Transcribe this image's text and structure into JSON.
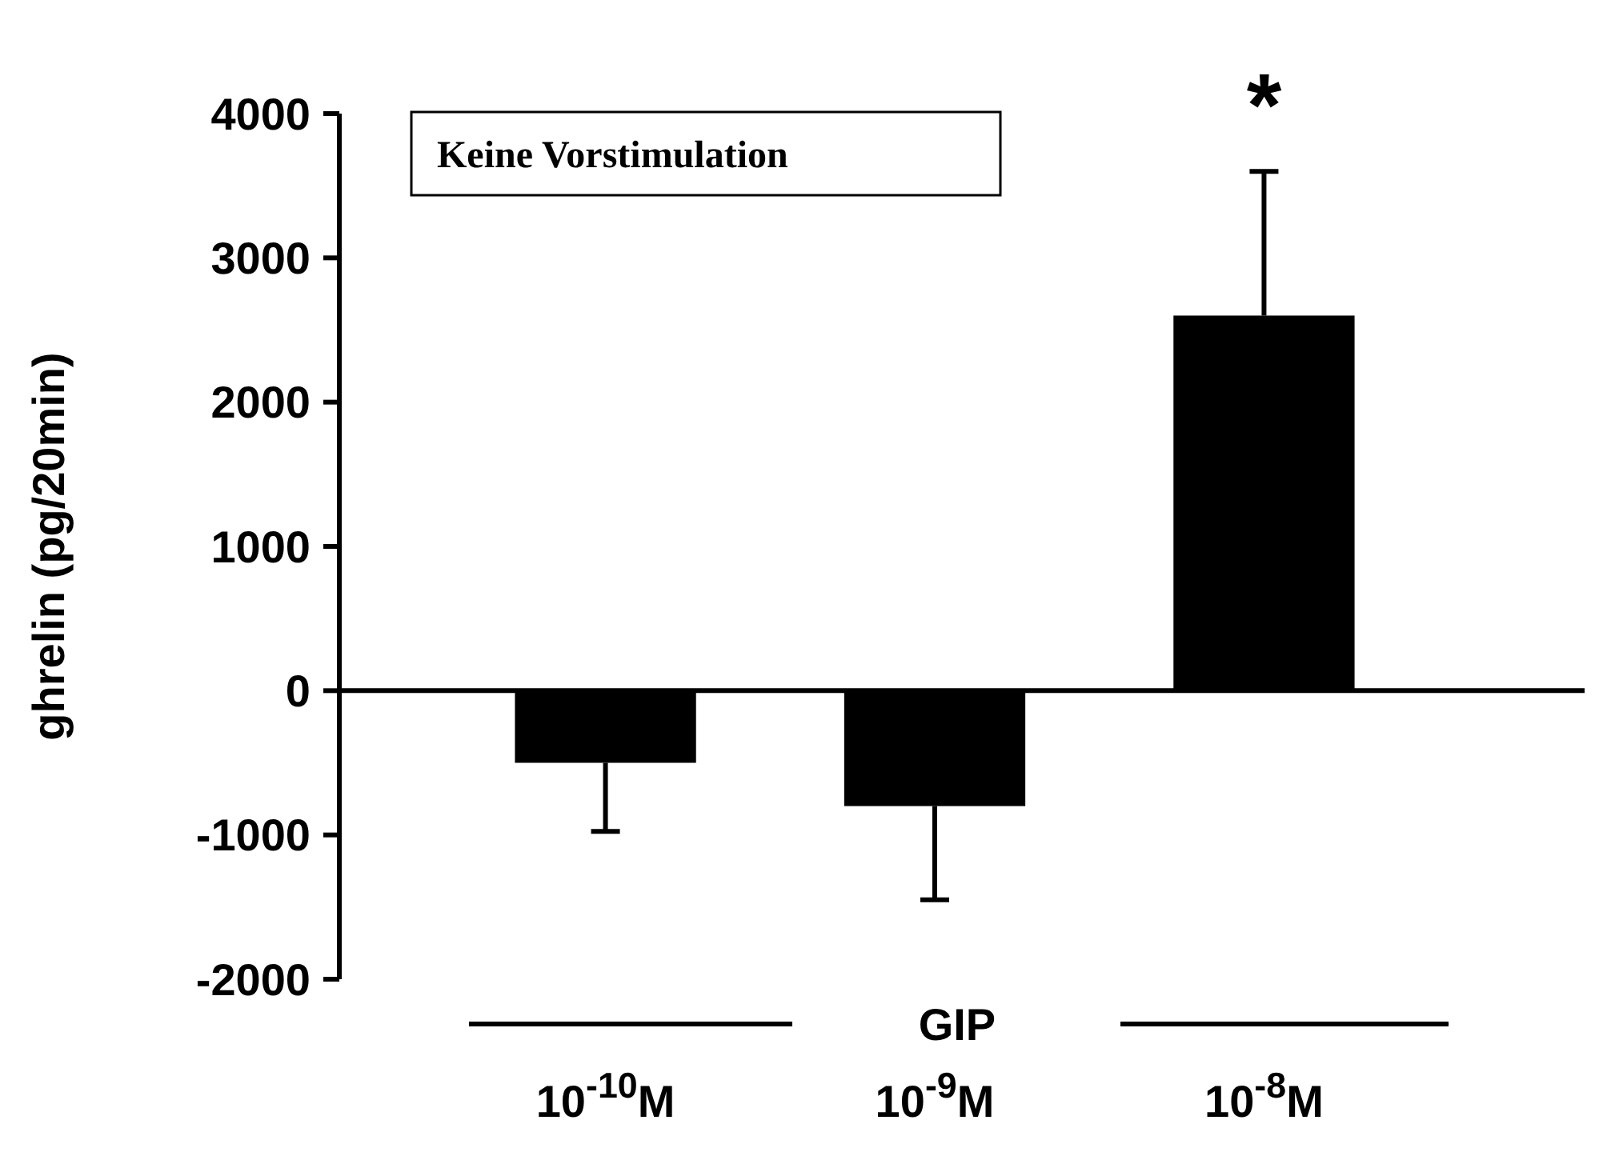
{
  "chart_data": {
    "type": "bar",
    "ylabel": "ghrelin (pg/20min)",
    "categories": [
      "10$^{-10}$M",
      "10$^{-9}$M",
      "10$^{-8}$M"
    ],
    "values": [
      -500,
      -800,
      2600
    ],
    "errors": [
      [
        -975,
        -500
      ],
      [
        -1450,
        -800
      ],
      [
        2600,
        3600
      ]
    ],
    "color": "#000000",
    "ylim": [
      -2000,
      4000
    ],
    "yticks": [
      -2000,
      -1000,
      0,
      1000,
      2000,
      3000,
      4000
    ],
    "annotations": [
      "Keine Vorstimulation",
      "GIP",
      {
        "text": "*",
        "x": "10$^{-8}$M",
        "y": 3600
      }
    ]
  }
}
